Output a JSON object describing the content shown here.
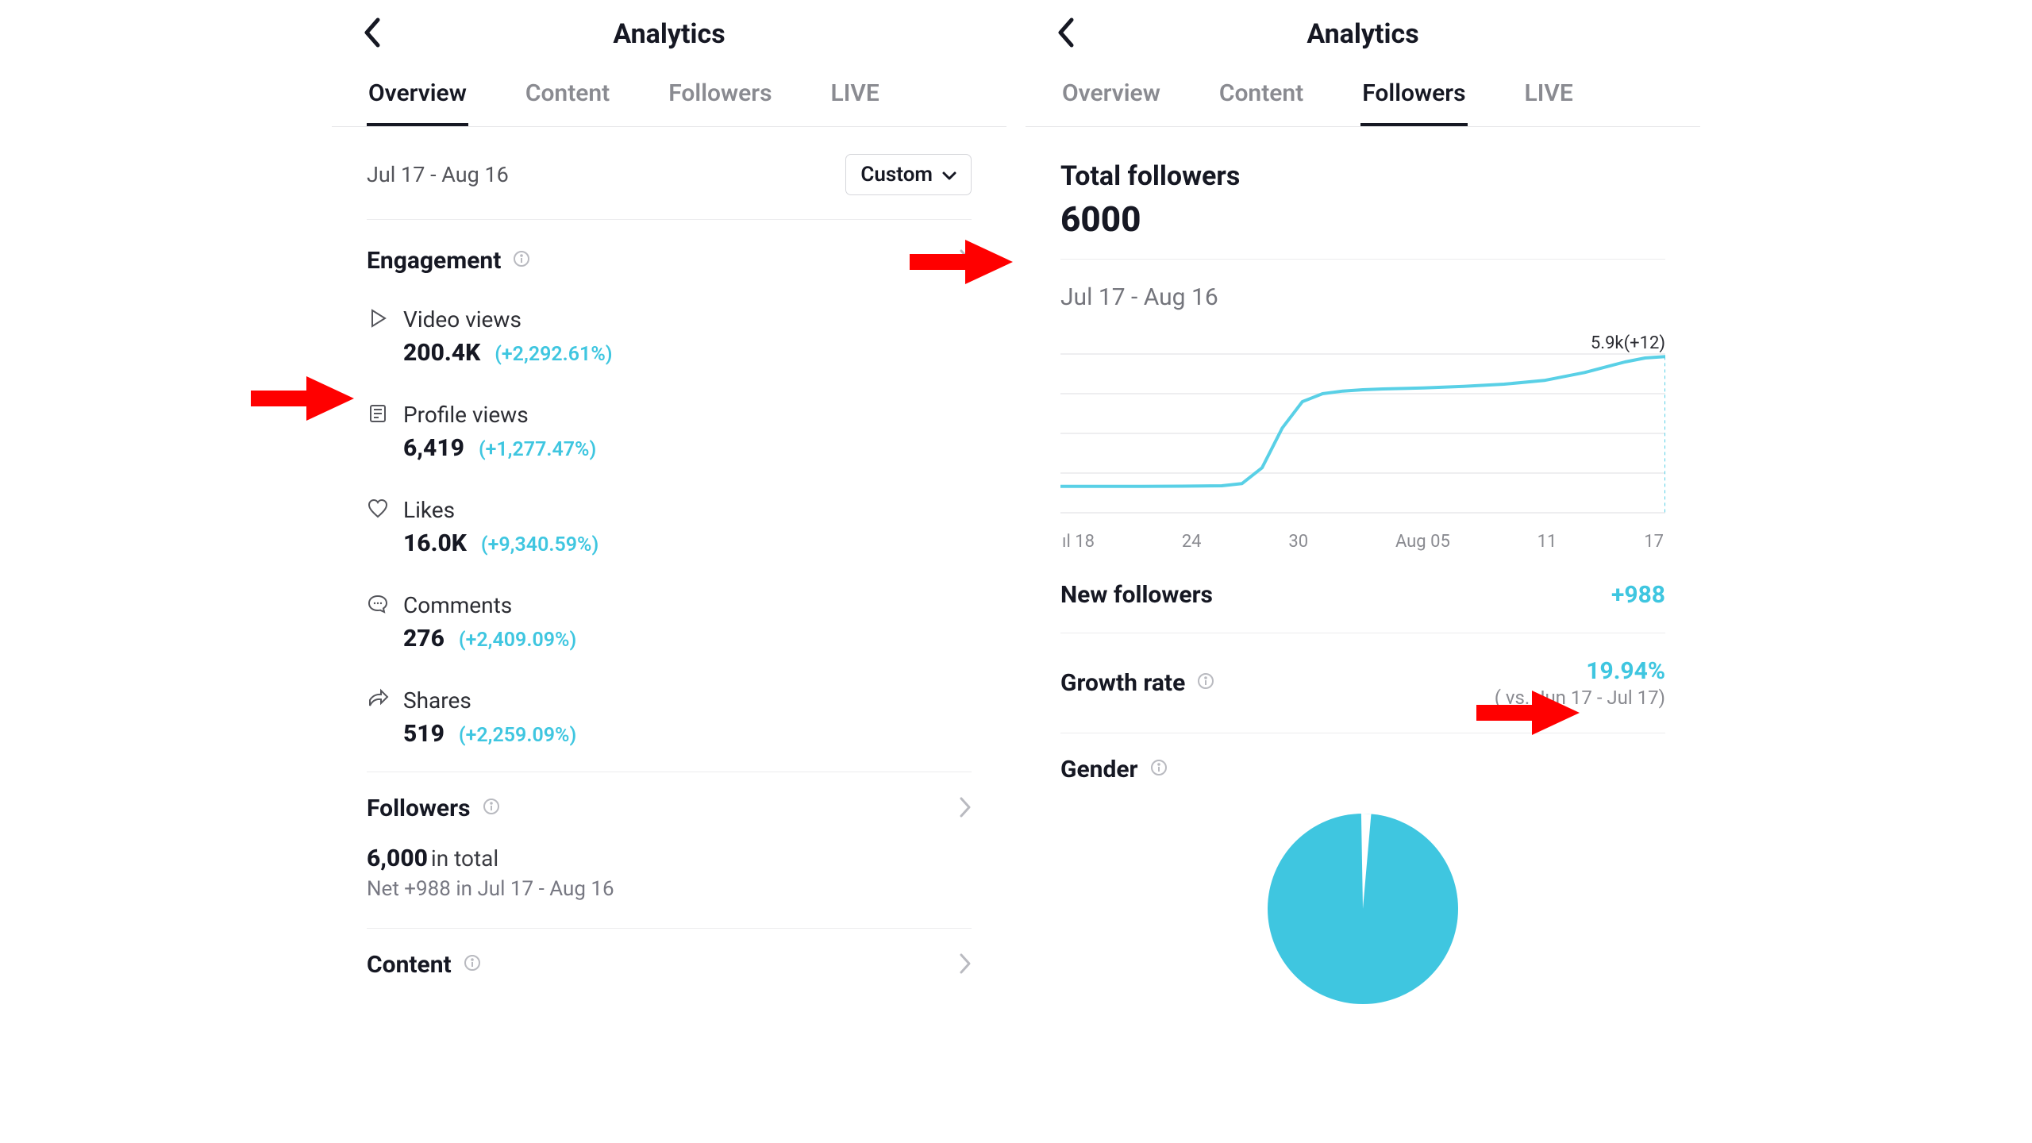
{
  "colors": {
    "text": "#161823",
    "muted": "#8a8b91",
    "muted2": "#74757c",
    "divider": "#ececee",
    "accent": "#3fc6e0",
    "accent_line": "#59d0e6",
    "arrow": "#ff0000",
    "pie_fill": "#3fc6e0",
    "border": "#d6d7db"
  },
  "left": {
    "header_title": "Analytics",
    "tabs": {
      "overview": "Overview",
      "content": "Content",
      "followers": "Followers",
      "live": "LIVE",
      "active": "overview"
    },
    "date_range": "Jul 17 - Aug 16",
    "custom_label": "Custom",
    "engagement_title": "Engagement",
    "metrics": {
      "video_views": {
        "label": "Video views",
        "value": "200.4K",
        "delta": "(+2,292.61%)"
      },
      "profile_views": {
        "label": "Profile views",
        "value": "6,419",
        "delta": "(+1,277.47%)"
      },
      "likes": {
        "label": "Likes",
        "value": "16.0K",
        "delta": "(+9,340.59%)"
      },
      "comments": {
        "label": "Comments",
        "value": "276",
        "delta": "(+2,409.09%)"
      },
      "shares": {
        "label": "Shares",
        "value": "519",
        "delta": "(+2,259.09%)"
      }
    },
    "followers_title": "Followers",
    "followers_total_value": "6,000",
    "followers_total_suffix": " in total",
    "followers_net_line": "Net +988 in Jul 17 - Aug 16",
    "content_title": "Content"
  },
  "right": {
    "header_title": "Analytics",
    "tabs": {
      "overview": "Overview",
      "content": "Content",
      "followers": "Followers",
      "live": "LIVE",
      "active": "followers"
    },
    "total_followers_label": "Total followers",
    "total_followers_value": "6000",
    "date_range": "Jul 17 - Aug 16",
    "chart": {
      "end_label": "5.9k(+12)",
      "x_ticks": [
        "ıl 18",
        "24",
        "30",
        "Aug 05",
        "11",
        "17"
      ],
      "grid_color": "#e9e9ec",
      "line_color": "#59d0e6",
      "line_width": 4,
      "ylim": [
        0,
        6000
      ],
      "xlim": [
        0,
        30
      ],
      "series": [
        [
          0,
          1000
        ],
        [
          2,
          1000
        ],
        [
          4,
          1000
        ],
        [
          6,
          1005
        ],
        [
          7,
          1010
        ],
        [
          8,
          1020
        ],
        [
          9,
          1100
        ],
        [
          10,
          1700
        ],
        [
          11,
          3200
        ],
        [
          12,
          4200
        ],
        [
          13,
          4500
        ],
        [
          14,
          4600
        ],
        [
          15,
          4650
        ],
        [
          16,
          4680
        ],
        [
          18,
          4720
        ],
        [
          20,
          4780
        ],
        [
          22,
          4860
        ],
        [
          24,
          5000
        ],
        [
          26,
          5300
        ],
        [
          28,
          5700
        ],
        [
          29,
          5850
        ],
        [
          30,
          5900
        ]
      ]
    },
    "new_followers_label": "New followers",
    "new_followers_value": "+988",
    "growth_rate_label": "Growth rate",
    "growth_rate_value": "19.94%",
    "growth_rate_compare": "( vs. Jun 17 - Jul 17)",
    "gender_label": "Gender",
    "pie": {
      "fill_color": "#3fc6e0",
      "bg_color": "#ffffff",
      "wedge_deg": 6,
      "wedge_center_deg": -88,
      "radius": 120
    }
  }
}
